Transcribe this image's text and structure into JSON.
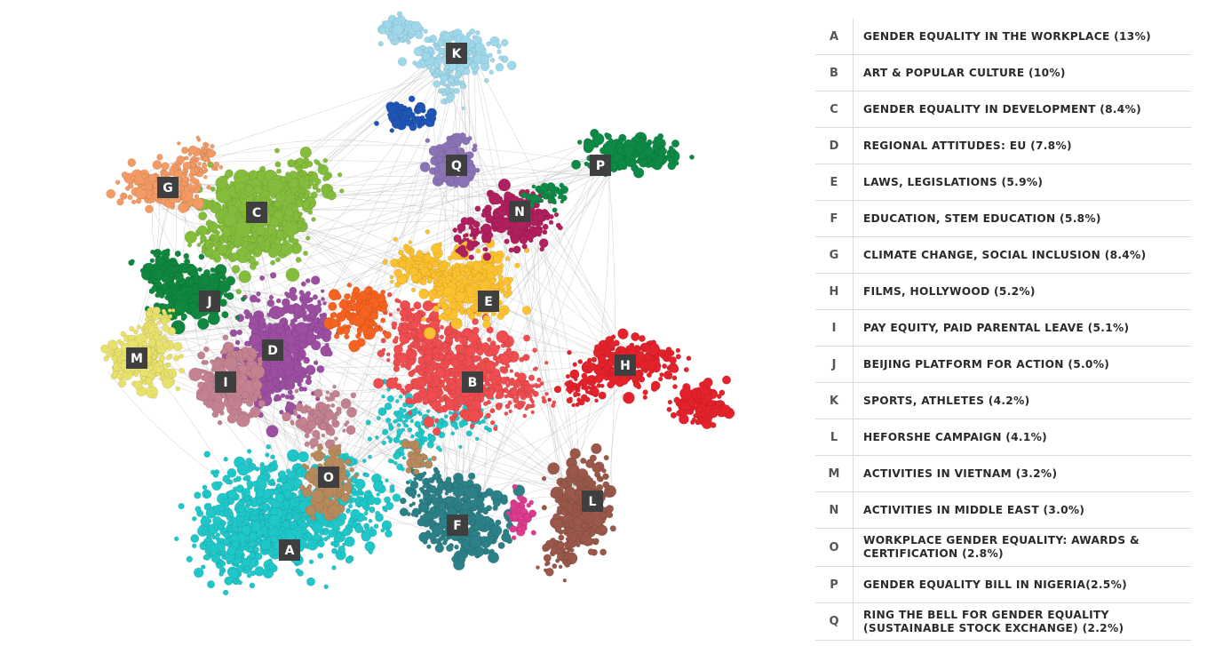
{
  "clusters": [
    {
      "key": "A",
      "label": "GENDER EQUALITY IN THE WORKPLACE (13%)",
      "color": "#1fc7c9"
    },
    {
      "key": "B",
      "label": "ART & POPULAR CULTURE (10%)",
      "color": "#ef4d4f"
    },
    {
      "key": "C",
      "label": "GENDER EQUALITY IN DEVELOPMENT (8.4%)",
      "color": "#84bd3c"
    },
    {
      "key": "D",
      "label": "REGIONAL ATTITUDES: EU (7.8%)",
      "color": "#9c4ea1"
    },
    {
      "key": "E",
      "label": "LAWS, LEGISLATIONS (5.9%)",
      "color": "#fcc12e"
    },
    {
      "key": "F",
      "label": "EDUCATION, STEM EDUCATION (5.8%)",
      "color": "#2c8088"
    },
    {
      "key": "G",
      "label": "CLIMATE CHANGE, SOCIAL INCLUSION (8.4%)",
      "color": "#f39a65"
    },
    {
      "key": "H",
      "label": "FILMS, HOLLYWOOD (5.2%)",
      "color": "#e4222b"
    },
    {
      "key": "I",
      "label": "PAY EQUITY, PAID PARENTAL LEAVE (5.1%)",
      "color": "#c48290"
    },
    {
      "key": "J",
      "label": "BEIJING PLATFORM FOR ACTION (5.0%)",
      "color": "#10873e"
    },
    {
      "key": "K",
      "label": "SPORTS, ATHLETES (4.2%)",
      "color": "#9fd8ea"
    },
    {
      "key": "L",
      "label": "HEFORSHE CAMPAIGN (4.1%)",
      "color": "#99584a"
    },
    {
      "key": "M",
      "label": "ACTIVITIES IN VIETNAM (3.2%)",
      "color": "#e8e16c"
    },
    {
      "key": "N",
      "label": "ACTIVITIES IN MIDDLE EAST (3.0%)",
      "color": "#b01f5e"
    },
    {
      "key": "O",
      "label": "WORKPLACE GENDER EQUALITY: AWARDS & CERTIFICATION (2.8%)",
      "color": "#b78a5e"
    },
    {
      "key": "P",
      "label": "GENDER EQUALITY BILL IN NIGERIA(2.5%)",
      "color": "#0d8a45"
    },
    {
      "key": "Q",
      "label": "RING THE BELL FOR GENDER EQUALITY (SUSTAINABLE STOCK EXCHANGE) (2.2%)",
      "color": "#8b73b6"
    }
  ],
  "extra_colors": {
    "dark_blue": "#1f55b5",
    "orange_red": "#f6621f",
    "magenta": "#dd3c8f",
    "edge": "#b9b9b9"
  }
}
